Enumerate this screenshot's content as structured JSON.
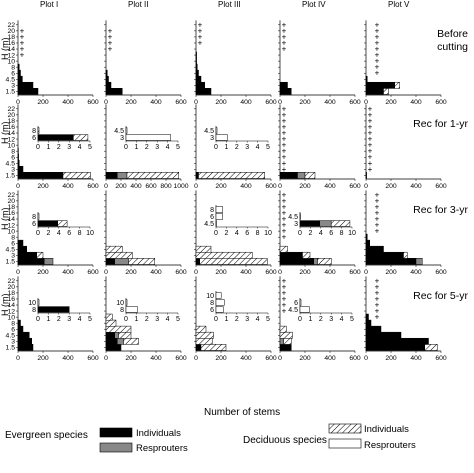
{
  "chart_data": {
    "type": "bar",
    "orientation": "horizontal",
    "xlabel": "Number of stems",
    "ylabel": "H (m)",
    "plots": [
      "Plot I",
      "Plot II",
      "Plot III",
      "Plot IV",
      "Plot V"
    ],
    "row_labels": [
      [
        "Before",
        "cutting"
      ],
      [
        "Rec for 1-yr"
      ],
      [
        "Rec for 3-yr"
      ],
      [
        "Rec for 5-yr"
      ]
    ],
    "height_classes": [
      "1.5",
      "3",
      "4.5",
      "6",
      "8",
      "10",
      "12",
      "14",
      "16",
      "18",
      "20",
      "22"
    ],
    "y_tick_labels": [
      "22",
      "20",
      "18",
      "16",
      "14",
      "12",
      "10",
      "8",
      "6",
      "4.5",
      "3",
      "1.5"
    ],
    "xlim": [
      [
        0,
        600
      ],
      [
        0,
        600
      ],
      [
        0,
        600
      ],
      [
        0,
        600
      ],
      [
        0,
        600
      ]
    ],
    "x_ticks": [
      [
        0,
        200,
        400,
        600
      ],
      [
        0,
        200,
        400,
        600
      ],
      [
        0,
        200,
        400,
        600
      ],
      [
        0,
        200,
        400,
        600
      ],
      [
        0,
        200,
        400,
        600
      ]
    ],
    "x_ticks_row2_plot2": [
      "0",
      "200",
      "400",
      "600",
      "800",
      "1000"
    ],
    "legend": {
      "evergreen_label": "Evergreen species",
      "deciduous_label": "Deciduous species",
      "evergreen_individuals": "Individuals",
      "evergreen_resprouters": "Resprouters",
      "deciduous_individuals": "Individuals",
      "deciduous_resprouters": "Resprouters"
    },
    "colors": {
      "evergreen_individuals": "#000000",
      "evergreen_resprouters": "#888888",
      "deciduous_individuals": "hatched",
      "deciduous_resprouters": "#ffffff"
    },
    "insets": [
      {
        "row": 1,
        "plot": 0,
        "ticks": [
          "0",
          "1",
          "2",
          "3",
          "4",
          "5"
        ],
        "xmax": 5,
        "labels": [
          "8",
          "6"
        ],
        "bars": [
          [
            0,
            0,
            0.1,
            0
          ],
          [
            3.4,
            0,
            1.4,
            0
          ]
        ]
      },
      {
        "row": 1,
        "plot": 1,
        "ticks": [
          "0",
          "1",
          "2",
          "3",
          "4",
          "5"
        ],
        "xmax": 5,
        "labels": [
          "4.5",
          "3"
        ],
        "bars": [
          [
            0,
            0,
            0,
            0.1
          ],
          [
            0,
            0,
            0,
            4.3
          ]
        ]
      },
      {
        "row": 1,
        "plot": 2,
        "ticks": [
          "0",
          "1",
          "2",
          "3",
          "4",
          "5"
        ],
        "xmax": 5,
        "labels": [
          "4.5",
          "3"
        ],
        "bars": [
          [
            0,
            0,
            0,
            0.1
          ],
          [
            0,
            0,
            0,
            1.1
          ]
        ]
      },
      {
        "row": 2,
        "plot": 0,
        "ticks": [
          "0",
          "2",
          "4",
          "6",
          "8",
          "10"
        ],
        "xmax": 10,
        "labels": [
          "8",
          "6"
        ],
        "bars": [
          [
            0,
            0,
            0,
            0.2
          ],
          [
            3.8,
            0,
            1.8,
            0
          ]
        ]
      },
      {
        "row": 2,
        "plot": 2,
        "ticks": [
          "0",
          "2",
          "4",
          "6",
          "8",
          "10"
        ],
        "xmax": 10,
        "labels": [
          "8",
          "6",
          "4.5"
        ],
        "bars": [
          [
            0,
            0,
            0,
            1.3
          ],
          [
            0,
            0,
            0,
            1.3
          ],
          [
            0,
            0,
            0,
            0.1
          ]
        ]
      },
      {
        "row": 2,
        "plot": 3,
        "ticks": [
          "0",
          "2",
          "4",
          "6",
          "8",
          "10"
        ],
        "xmax": 10,
        "labels": [
          "4.5",
          "3"
        ],
        "bars": [
          [
            0,
            0,
            0,
            0.1
          ],
          [
            3.8,
            2.2,
            3.6,
            0
          ]
        ]
      },
      {
        "row": 3,
        "plot": 0,
        "ticks": [
          "0",
          "1",
          "2",
          "3",
          "4",
          "5"
        ],
        "xmax": 5,
        "labels": [
          "10",
          "8"
        ],
        "bars": [
          [
            0,
            0,
            0,
            0.1
          ],
          [
            3.0,
            0,
            0,
            0
          ]
        ]
      },
      {
        "row": 3,
        "plot": 1,
        "ticks": [
          "0",
          "1",
          "2",
          "3",
          "4",
          "5"
        ],
        "xmax": 5,
        "labels": [
          "10",
          "8"
        ],
        "bars": [
          [
            0,
            0,
            0,
            0.1
          ],
          [
            0,
            0,
            0,
            1.1
          ]
        ]
      },
      {
        "row": 3,
        "plot": 2,
        "ticks": [
          "0",
          "1",
          "2",
          "3",
          "4",
          "5"
        ],
        "xmax": 5,
        "labels": [
          "10",
          "8",
          "6"
        ],
        "bars": [
          [
            0,
            0,
            0,
            0.5
          ],
          [
            0,
            0,
            0,
            0.8
          ],
          [
            0,
            0,
            0,
            0.7
          ]
        ]
      },
      {
        "row": 3,
        "plot": 3,
        "ticks": [
          "0",
          "1",
          "2",
          "3",
          "4",
          "5"
        ],
        "xmax": 5,
        "labels": [
          "6",
          "4.5"
        ],
        "bars": [
          [
            0,
            0,
            0,
            0.1
          ],
          [
            0,
            0,
            0,
            0.9
          ]
        ]
      }
    ],
    "panels": [
      [
        {
          "bars": [
            [
              160,
              0,
              0,
              0
            ],
            [
              120,
              0,
              0,
              0
            ],
            [
              35,
              0,
              0,
              0
            ],
            [
              20,
              0,
              0,
              0
            ],
            [
              10,
              0,
              0,
              0
            ]
          ],
          "plus": [
            20,
            18,
            16,
            14,
            12
          ],
          "plus_x": 45
        },
        {
          "bars": [
            [
              130,
              0,
              0,
              0
            ],
            [
              40,
              0,
              0,
              0
            ],
            [
              20,
              0,
              0,
              0
            ],
            [
              10,
              0,
              0,
              0
            ]
          ],
          "plus": [
            20,
            18,
            16,
            14
          ],
          "plus_x": 80
        },
        {
          "bars": [
            [
              120,
              0,
              0,
              0
            ],
            [
              70,
              0,
              0,
              0
            ],
            [
              40,
              0,
              0,
              0
            ],
            [
              20,
              0,
              0,
              0
            ],
            [
              10,
              0,
              0,
              0
            ],
            [
              5,
              0,
              0,
              0
            ],
            [
              5,
              0,
              0,
              0
            ]
          ],
          "plus": [
            22,
            20,
            18,
            16
          ],
          "plus_x": 85
        },
        {
          "bars": [
            [
              90,
              0,
              0,
              0
            ],
            [
              60,
              0,
              0,
              0
            ]
          ],
          "plus": [
            22,
            20,
            18,
            16,
            14
          ],
          "plus_x": 45
        },
        {
          "bars": [
            [
              140,
              0,
              40,
              0
            ],
            [
              230,
              0,
              40,
              0
            ],
            [
              10,
              0,
              0,
              0
            ]
          ],
          "plus": [
            22,
            20,
            18,
            16,
            14,
            12,
            10,
            8,
            6
          ],
          "plus_x": 25,
          "plus_dx": 7
        }
      ],
      [
        {
          "bars": [
            [
              360,
              0,
              220,
              0
            ],
            [
              40,
              0,
              0,
              0
            ],
            [
              10,
              0,
              0,
              0
            ],
            [
              5,
              0,
              0,
              0
            ],
            [
              3,
              0,
              0,
              0
            ]
          ],
          "plus": [],
          "plus_x": 0
        },
        {
          "bars": [
            [
              150,
              130,
              690,
              0
            ]
          ],
          "plus": [],
          "plus_x": 0
        },
        {
          "bars": [
            [
              20,
              0,
              530,
              0
            ]
          ],
          "plus": [],
          "plus_x": 0
        },
        {
          "bars": [
            [
              140,
              60,
              80,
              0
            ]
          ],
          "plus": [
            22,
            20,
            18,
            16,
            14,
            12,
            10,
            8,
            6,
            4.5,
            3
          ],
          "plus_x": 30
        },
        {
          "bars": [
            [
              5,
              0,
              0,
              0
            ]
          ],
          "plus": [
            22,
            20,
            18,
            16,
            14,
            12,
            10,
            8,
            6,
            4.5,
            3
          ],
          "plus_x": 15
        }
      ],
      [
        {
          "bars": [
            [
              210,
              70,
              0,
              0
            ],
            [
              150,
              0,
              50,
              0
            ],
            [
              70,
              0,
              0,
              0
            ],
            [
              40,
              0,
              0,
              0
            ]
          ],
          "plus": [],
          "plus_x": 0
        },
        {
          "bars": [
            [
              70,
              110,
              210,
              0
            ],
            [
              0,
              0,
              210,
              0
            ],
            [
              0,
              0,
              130,
              0
            ]
          ],
          "plus": [],
          "plus_x": 0
        },
        {
          "bars": [
            [
              30,
              0,
              540,
              0
            ],
            [
              0,
              0,
              450,
              0
            ],
            [
              0,
              0,
              120,
              0
            ]
          ],
          "plus": [],
          "plus_x": 0
        },
        {
          "bars": [
            [
              270,
              30,
              110,
              0
            ],
            [
              180,
              0,
              60,
              0
            ],
            [
              0,
              0,
              60,
              0
            ]
          ],
          "plus": [
            22,
            20,
            18,
            16,
            14,
            12,
            10,
            8
          ],
          "plus_x": 30
        },
        {
          "bars": [
            [
              400,
              50,
              0,
              0
            ],
            [
              300,
              0,
              30,
              0
            ],
            [
              140,
              0,
              0,
              0
            ],
            [
              30,
              0,
              0,
              0
            ],
            [
              10,
              0,
              0,
              0
            ]
          ],
          "plus": [
            22,
            20,
            18,
            16,
            14,
            12,
            10
          ],
          "plus_x": 25,
          "plus_dx": 7
        }
      ],
      [
        {
          "bars": [
            [
              120,
              0,
              0,
              0
            ],
            [
              110,
              0,
              0,
              0
            ],
            [
              90,
              0,
              0,
              0
            ],
            [
              40,
              0,
              0,
              0
            ],
            [
              20,
              0,
              0,
              0
            ]
          ],
          "plus": [],
          "plus_x": 0
        },
        {
          "bars": [
            [
              120,
              0,
              0,
              0
            ],
            [
              90,
              50,
              120,
              0
            ],
            [
              70,
              30,
              100,
              0
            ],
            [
              0,
              0,
              200,
              0
            ],
            [
              0,
              0,
              80,
              0
            ],
            [
              0,
              0,
              50,
              0
            ]
          ],
          "plus": [],
          "plus_x": 0
        },
        {
          "bars": [
            [
              40,
              0,
              200,
              0
            ],
            [
              0,
              0,
              130,
              0
            ],
            [
              0,
              0,
              140,
              0
            ],
            [
              0,
              0,
              80,
              0
            ]
          ],
          "plus": [],
          "plus_x": 0
        },
        {
          "bars": [
            [
              90,
              0,
              0,
              0
            ],
            [
              0,
              30,
              60,
              0
            ],
            [
              0,
              0,
              100,
              0
            ],
            [
              0,
              0,
              50,
              0
            ]
          ],
          "plus": [
            22,
            20,
            18,
            16,
            14,
            12
          ],
          "plus_x": 25
        },
        {
          "bars": [
            [
              470,
              0,
              100,
              0
            ],
            [
              500,
              0,
              0,
              0
            ],
            [
              280,
              0,
              0,
              0
            ],
            [
              120,
              0,
              0,
              0
            ],
            [
              40,
              0,
              0,
              0
            ],
            [
              20,
              0,
              0,
              0
            ]
          ],
          "plus": [
            22,
            20,
            18,
            16,
            14,
            12,
            10
          ],
          "plus_x": 25,
          "plus_dx": 7
        }
      ]
    ]
  }
}
